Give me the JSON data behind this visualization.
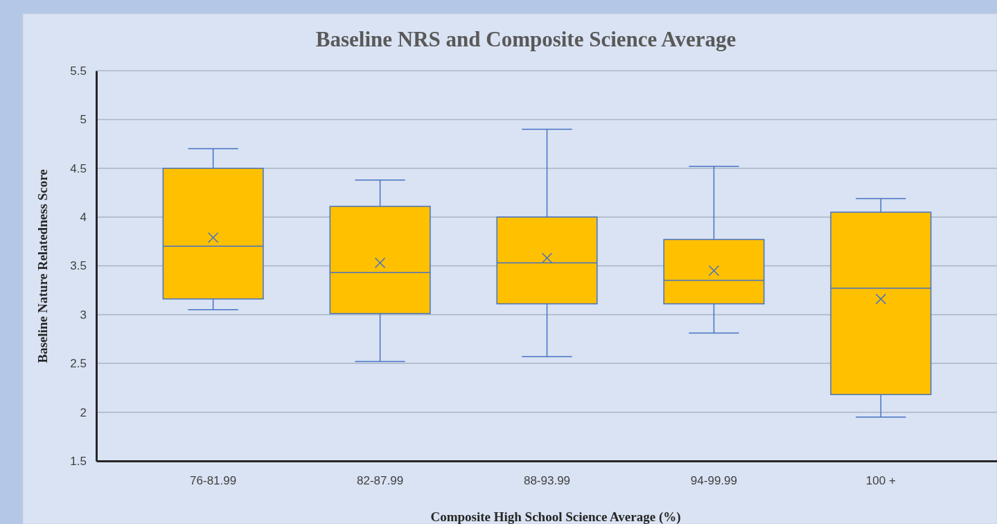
{
  "chart_data": {
    "type": "box",
    "title": "Baseline NRS and Composite Science Average",
    "xlabel": "Composite High School Science Average (%)",
    "ylabel": "Baseline Nature Relatedness  Score",
    "categories": [
      "76-81.99",
      "82-87.99",
      "88-93.99",
      "94-99.99",
      "100 +"
    ],
    "color": "#ffc000",
    "boxes": [
      {
        "low": 3.05,
        "q1": 3.16,
        "median": 3.7,
        "q3": 4.5,
        "high": 4.7,
        "mean": 3.79
      },
      {
        "low": 2.52,
        "q1": 3.01,
        "median": 3.43,
        "q3": 4.11,
        "high": 4.38,
        "mean": 3.53
      },
      {
        "low": 2.57,
        "q1": 3.11,
        "median": 3.53,
        "q3": 4.0,
        "high": 4.9,
        "mean": 3.58
      },
      {
        "low": 2.81,
        "q1": 3.11,
        "median": 3.35,
        "q3": 3.77,
        "high": 4.52,
        "mean": 3.45
      },
      {
        "low": 1.95,
        "q1": 2.18,
        "median": 3.27,
        "q3": 4.05,
        "high": 4.19,
        "mean": 3.16
      }
    ],
    "ylim": [
      1.5,
      5.5
    ],
    "yticks": [
      1.5,
      2,
      2.5,
      3,
      3.5,
      4,
      4.5,
      5,
      5.5
    ],
    "grid": "y"
  }
}
